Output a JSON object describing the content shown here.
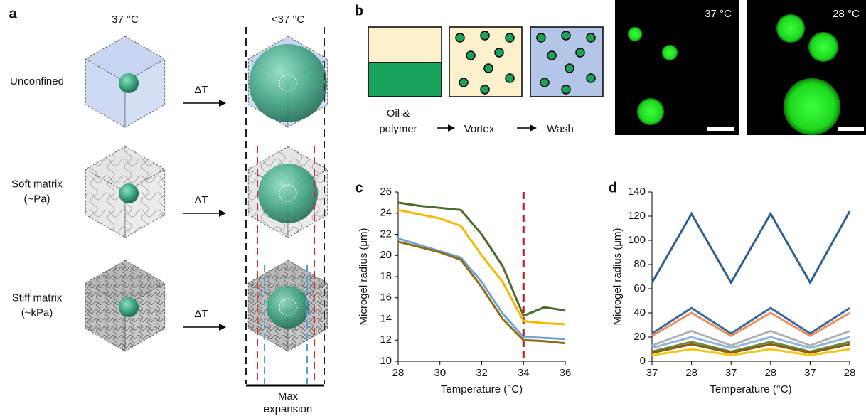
{
  "panel_a": {
    "label": "a",
    "col_headers": [
      "37 °C",
      "<37 °C"
    ],
    "rows": [
      {
        "label": [
          "Unconfined"
        ],
        "arrow": "ΔT"
      },
      {
        "label": [
          "Soft matrix",
          "(~Pa)"
        ],
        "arrow": "ΔT"
      },
      {
        "label": [
          "Stiff matrix",
          "(~kPa)"
        ],
        "arrow": "ΔT"
      }
    ],
    "footer": [
      "Max",
      "expansion"
    ]
  },
  "panel_b": {
    "label": "b",
    "steps": [
      [
        "Oil &",
        "polymer"
      ],
      [
        "Vortex"
      ],
      [
        "Wash"
      ]
    ],
    "images": [
      "37 °C",
      "28 °C"
    ]
  },
  "chart_data": [
    {
      "type": "line",
      "label": "c",
      "x": [
        28,
        29,
        30,
        31,
        32,
        33,
        34,
        35,
        36
      ],
      "series": [
        {
          "color": "#4a6b2a",
          "values": [
            25.0,
            24.7,
            24.5,
            24.3,
            22.0,
            19.0,
            14.3,
            15.1,
            14.8
          ]
        },
        {
          "color": "#f5b800",
          "values": [
            24.3,
            23.9,
            23.5,
            22.8,
            20.0,
            17.5,
            13.8,
            13.6,
            13.5
          ]
        },
        {
          "color": "#6fa3d6",
          "values": [
            21.6,
            21.0,
            20.4,
            19.8,
            17.5,
            14.5,
            12.3,
            12.2,
            12.1
          ]
        },
        {
          "color": "#8b6d14",
          "values": [
            21.3,
            20.8,
            20.3,
            19.6,
            17.0,
            14.0,
            12.0,
            11.9,
            11.7
          ]
        }
      ],
      "vline": 34,
      "xlim": [
        28,
        36
      ],
      "xticks": [
        28,
        30,
        32,
        34,
        36
      ],
      "ylim": [
        10,
        26
      ],
      "yticks": [
        10,
        12,
        14,
        16,
        18,
        20,
        22,
        24,
        26
      ],
      "xlabel": "Temperature (°C)",
      "ylabel": "Microgel radius (μm)"
    },
    {
      "type": "line",
      "label": "d",
      "categories": [
        "37",
        "28",
        "37",
        "28",
        "37",
        "28"
      ],
      "series": [
        {
          "color": "#2f5f8f",
          "values": [
            65,
            122,
            65,
            122,
            65,
            124
          ]
        },
        {
          "color": "#3d6a9e",
          "values": [
            23,
            44,
            23,
            44,
            23,
            44
          ]
        },
        {
          "color": "#ed8e5f",
          "values": [
            21,
            40,
            21,
            40,
            21,
            40
          ]
        },
        {
          "color": "#b0b0b0",
          "values": [
            13,
            25,
            13,
            25,
            13,
            25
          ]
        },
        {
          "color": "#8fb4dc",
          "values": [
            11,
            20,
            11,
            20,
            11,
            20
          ]
        },
        {
          "color": "#6a8a3c",
          "values": [
            8,
            16,
            8,
            16,
            8,
            16
          ]
        },
        {
          "color": "#8b5a14",
          "values": [
            7,
            14,
            7,
            14,
            7,
            14
          ]
        },
        {
          "color": "#f5c518",
          "values": [
            5,
            10,
            5,
            10,
            5,
            10
          ]
        }
      ],
      "ylim": [
        0,
        140
      ],
      "yticks": [
        0,
        20,
        40,
        60,
        80,
        100,
        120,
        140
      ],
      "xlabel": "Temperature (°C)",
      "ylabel": "Microgel radius (μm)"
    }
  ]
}
